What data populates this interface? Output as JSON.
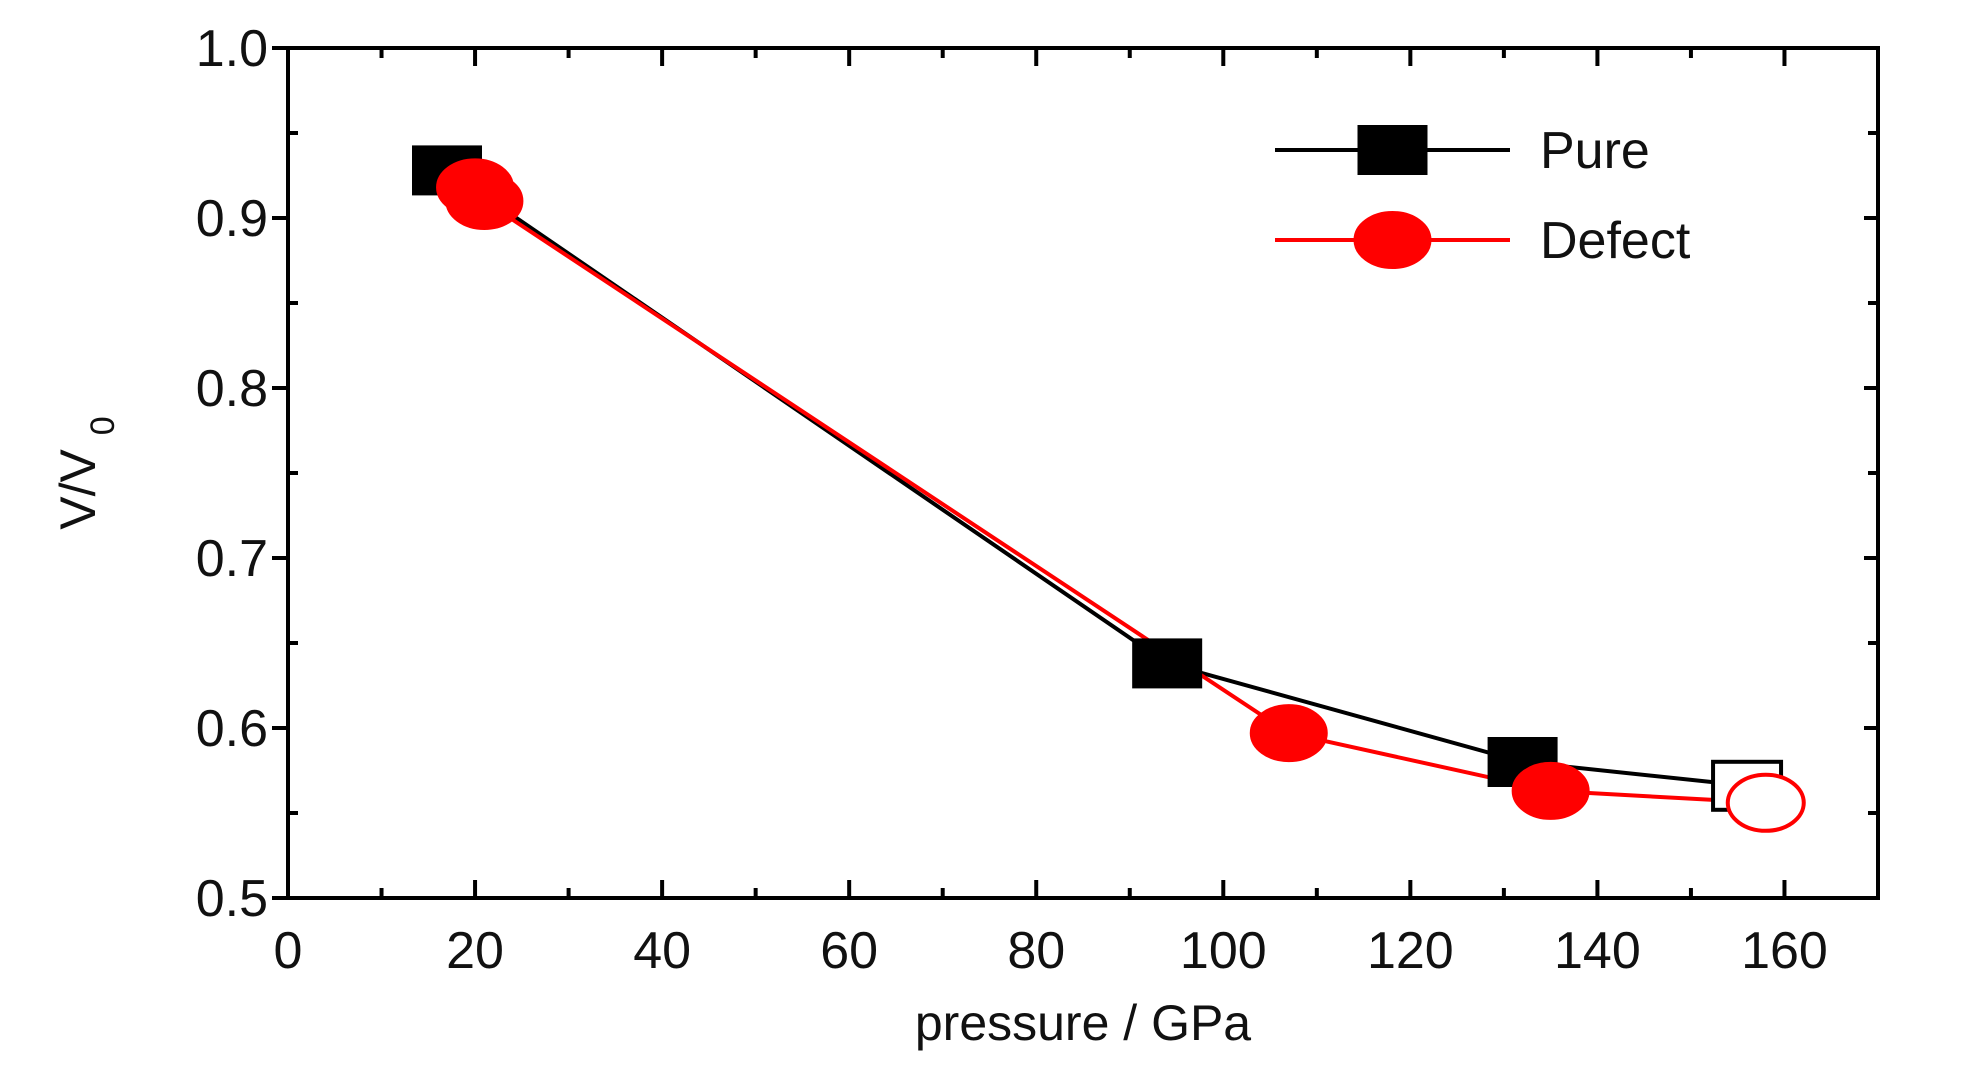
{
  "chart_data": {
    "type": "line",
    "title": "",
    "xlabel": "pressure / GPa",
    "ylabel": "V/V",
    "ylabel_subscript": "0",
    "xlim": [
      0,
      170
    ],
    "ylim": [
      0.5,
      1.0
    ],
    "xticks": [
      0,
      20,
      40,
      60,
      80,
      100,
      120,
      140,
      160
    ],
    "yticks": [
      0.5,
      0.6,
      0.7,
      0.8,
      0.9,
      1.0
    ],
    "xtick_labels": [
      "0",
      "20",
      "40",
      "60",
      "80",
      "100",
      "120",
      "140",
      "160"
    ],
    "ytick_labels": [
      "0.5",
      "0.6",
      "0.7",
      "0.8",
      "0.9",
      "1.0"
    ],
    "grid": false,
    "legend_position": "top-right",
    "series": [
      {
        "name": "Pure",
        "color": "#000000",
        "marker": "square",
        "points": [
          {
            "x": 17,
            "y": 0.928,
            "filled": true
          },
          {
            "x": 94,
            "y": 0.638,
            "filled": true
          },
          {
            "x": 132,
            "y": 0.58,
            "filled": true
          },
          {
            "x": 156,
            "y": 0.566,
            "filled": false
          }
        ]
      },
      {
        "name": "Defect",
        "color": "#ff0000",
        "marker": "circle",
        "points": [
          {
            "x": 20,
            "y": 0.918,
            "filled": true
          },
          {
            "x": 21,
            "y": 0.91,
            "filled": true
          },
          {
            "x": 107,
            "y": 0.597,
            "filled": true
          },
          {
            "x": 135,
            "y": 0.563,
            "filled": true
          },
          {
            "x": 158,
            "y": 0.556,
            "filled": false
          }
        ]
      }
    ]
  }
}
